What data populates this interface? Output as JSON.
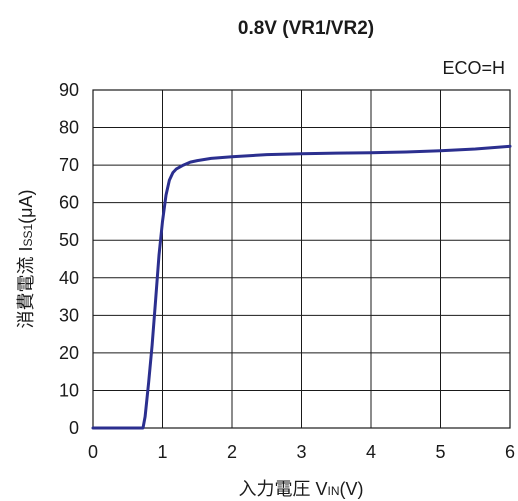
{
  "chart_data": {
    "type": "line",
    "title": "0.8V (VR1/VR2)",
    "annotation": "ECO=H",
    "xlabel": {
      "prefix": "入力電圧 V",
      "sub": "IN",
      "suffix": "(V)"
    },
    "ylabel": {
      "prefix": "消費電流 I",
      "sub": "SS1",
      "suffix": "(μA)"
    },
    "xlim": [
      0,
      6
    ],
    "ylim": [
      0,
      90
    ],
    "xticks": [
      0,
      1,
      2,
      3,
      4,
      5,
      6
    ],
    "yticks": [
      0,
      10,
      20,
      30,
      40,
      50,
      60,
      70,
      80,
      90
    ],
    "grid": true,
    "line_color": "#2b2f8f",
    "series": [
      {
        "x": [
          0,
          0.5,
          0.72,
          0.75,
          0.8,
          0.85,
          0.9,
          0.95,
          1.0,
          1.05,
          1.1,
          1.15,
          1.2,
          1.3,
          1.4,
          1.5,
          1.7,
          2.0,
          2.5,
          3.0,
          3.5,
          4.0,
          4.5,
          5.0,
          5.5,
          6.0
        ],
        "y": [
          0,
          0,
          0,
          3,
          12,
          22,
          34,
          46,
          55,
          62,
          66,
          68,
          69,
          70,
          70.8,
          71.2,
          71.8,
          72.2,
          72.8,
          73.0,
          73.2,
          73.3,
          73.5,
          73.8,
          74.3,
          75.0
        ]
      }
    ]
  }
}
